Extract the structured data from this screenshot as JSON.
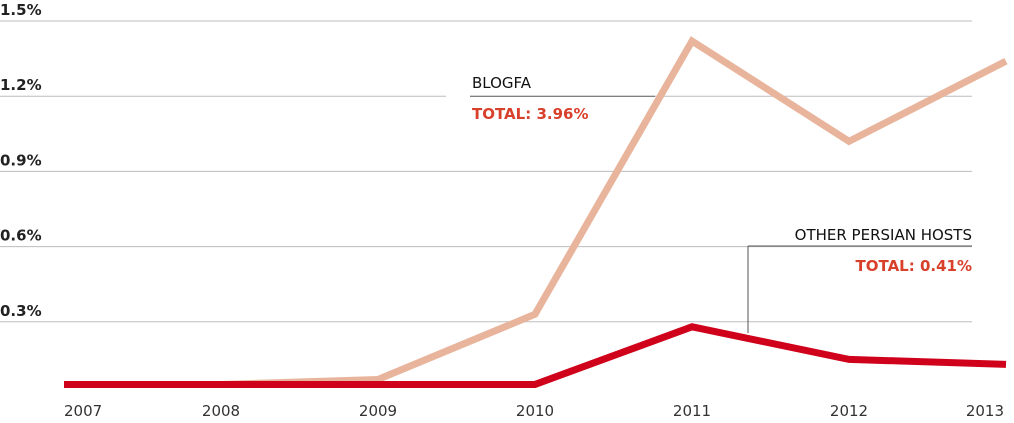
{
  "chart_data": {
    "type": "line",
    "categories": [
      "2007",
      "2008",
      "2009",
      "2010",
      "2011",
      "2012",
      "2013"
    ],
    "series": [
      {
        "name": "BLOGFA",
        "color": "#e8b49c",
        "values": [
          0.05,
          0.05,
          0.07,
          0.33,
          1.42,
          1.02,
          1.34
        ]
      },
      {
        "name": "OTHER PERSIAN HOSTS",
        "color": "#d0021b",
        "values": [
          0.05,
          0.05,
          0.05,
          0.05,
          0.28,
          0.15,
          0.13
        ]
      }
    ],
    "annotations": [
      "TOTAL: 3.96%",
      "TOTAL: 0.41%"
    ],
    "ylim": [
      0,
      1.5
    ],
    "yticks": [
      {
        "value": 0.3,
        "label": "0.3%"
      },
      {
        "value": 0.6,
        "label": "0.6%"
      },
      {
        "value": 0.9,
        "label": "0.9%"
      },
      {
        "value": 1.2,
        "label": "1.2%"
      },
      {
        "value": 1.5,
        "label": "1.5%"
      }
    ],
    "grid": true
  }
}
